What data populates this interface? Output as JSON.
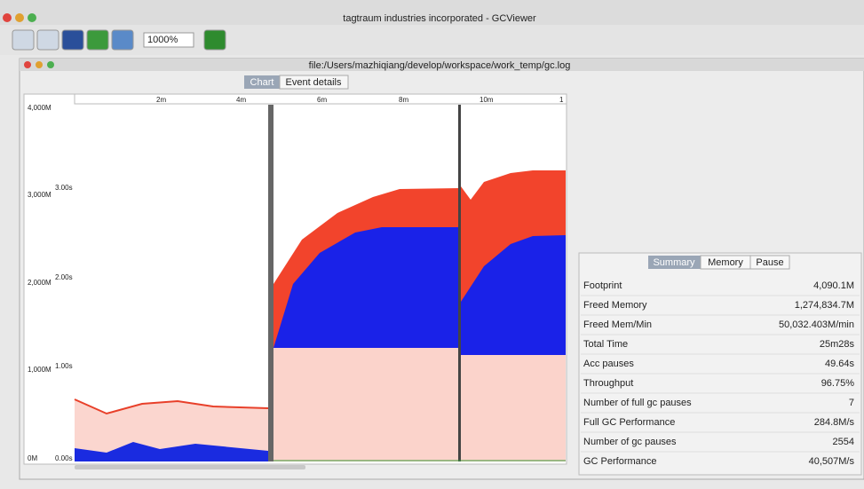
{
  "window": {
    "title": "tagtraum industries incorporated - GCViewer"
  },
  "toolbar": {
    "zoom": "1000%"
  },
  "document": {
    "title": "file:/Users/mazhiqiang/develop/workspace/work_temp/gc.log"
  },
  "chart_tabs": [
    "Chart",
    "Event details"
  ],
  "chart": {
    "memory_ticks": [
      "4,000M",
      "3,000M",
      "2,000M",
      "1,000M",
      "0M"
    ],
    "pause_ticks": [
      "3.00s",
      "2.00s",
      "1.00s",
      "0.00s"
    ],
    "time_ticks": [
      "2m",
      "4m",
      "6m",
      "8m",
      "10m",
      "1"
    ]
  },
  "summary": {
    "tabs": [
      "Summary",
      "Memory",
      "Pause"
    ],
    "rows": [
      {
        "label": "Footprint",
        "value": "4,090.1M"
      },
      {
        "label": "Freed Memory",
        "value": "1,274,834.7M"
      },
      {
        "label": "Freed Mem/Min",
        "value": "50,032.403M/min"
      },
      {
        "label": "Total Time",
        "value": "25m28s"
      },
      {
        "label": "Acc pauses",
        "value": "49.64s"
      },
      {
        "label": "Throughput",
        "value": "96.75%"
      },
      {
        "label": "Number of full gc pauses",
        "value": "7"
      },
      {
        "label": "Full GC Performance",
        "value": "284.8M/s"
      },
      {
        "label": "Number of gc pauses",
        "value": "2554"
      },
      {
        "label": "GC Performance",
        "value": "40,507M/s"
      }
    ]
  }
}
